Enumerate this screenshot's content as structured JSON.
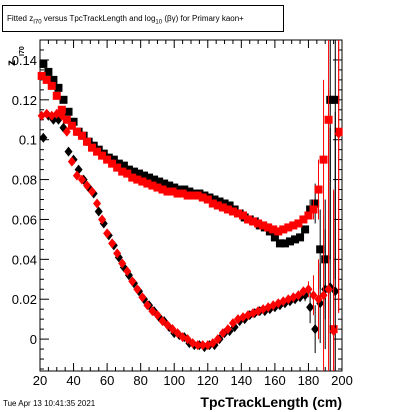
{
  "title": {
    "prefix": "Fitted  z",
    "sub1": "I70",
    "mid": " versus TpcTrackLength and log",
    "sub2": "10",
    "suffix": " (βγ) for Primary kaon+"
  },
  "timestamp": "Tue Apr 13 10:41:35 2021",
  "chart_data": {
    "type": "scatter",
    "xlabel": "TpcTrackLength (cm)",
    "ylabel_main": "z",
    "ylabel_sub": "I70",
    "xlim": [
      20,
      200
    ],
    "ylim": [
      -0.016,
      0.15
    ],
    "xticks": [
      20,
      40,
      60,
      80,
      100,
      120,
      140,
      160,
      180,
      200
    ],
    "yticks": [
      0,
      0.02,
      0.04,
      0.06,
      0.08,
      0.1,
      0.12,
      0.14
    ],
    "ytick_labels": [
      "0",
      "0.02",
      "0.04",
      "0.06",
      "0.08",
      "0.1",
      "0.12",
      "0.14"
    ],
    "colors": {
      "black": "#000000",
      "red": "#ff0000"
    },
    "series": [
      {
        "marker": "square",
        "color": "black",
        "x": [
          22,
          25,
          28,
          31,
          34,
          37,
          40,
          43,
          46,
          49,
          52,
          55,
          58,
          61,
          64,
          67,
          70,
          73,
          76,
          79,
          82,
          85,
          88,
          91,
          94,
          97,
          100,
          103,
          106,
          109,
          112,
          115,
          118,
          121,
          124,
          127,
          130,
          133,
          136,
          139,
          142,
          145,
          148,
          151,
          154,
          157,
          160,
          163,
          166,
          169,
          172,
          175,
          178,
          181,
          184,
          187,
          190,
          193,
          196
        ],
        "y": [
          0.138,
          0.134,
          0.13,
          0.126,
          0.12,
          0.114,
          0.109,
          0.104,
          0.102,
          0.099,
          0.097,
          0.095,
          0.093,
          0.091,
          0.09,
          0.088,
          0.087,
          0.085,
          0.084,
          0.083,
          0.082,
          0.081,
          0.08,
          0.079,
          0.078,
          0.077,
          0.076,
          0.075,
          0.075,
          0.074,
          0.073,
          0.073,
          0.072,
          0.071,
          0.07,
          0.069,
          0.068,
          0.067,
          0.065,
          0.063,
          0.061,
          0.06,
          0.059,
          0.057,
          0.056,
          0.054,
          0.051,
          0.048,
          0.048,
          0.049,
          0.05,
          0.051,
          0.055,
          0.065,
          0.068,
          0.045,
          0.04,
          0.12,
          0.12
        ],
        "err": [
          0,
          0,
          0,
          0,
          0,
          0,
          0,
          0,
          0,
          0,
          0,
          0,
          0,
          0,
          0,
          0,
          0,
          0,
          0,
          0,
          0,
          0,
          0,
          0,
          0,
          0,
          0,
          0,
          0,
          0,
          0,
          0,
          0,
          0,
          0,
          0,
          0,
          0,
          0,
          0,
          0,
          0,
          0,
          0,
          0,
          0,
          0,
          0,
          0,
          0,
          0,
          0,
          0,
          0.005,
          0.01,
          0.02,
          0.03,
          0.08,
          0.09
        ]
      },
      {
        "marker": "square",
        "color": "red",
        "x": [
          21,
          24,
          27,
          30,
          33,
          36,
          39,
          42,
          45,
          48,
          51,
          54,
          57,
          60,
          63,
          66,
          69,
          72,
          75,
          78,
          81,
          84,
          87,
          90,
          93,
          96,
          99,
          102,
          105,
          108,
          111,
          114,
          117,
          120,
          123,
          126,
          129,
          132,
          135,
          138,
          141,
          144,
          147,
          150,
          153,
          156,
          159,
          162,
          165,
          168,
          171,
          174,
          177,
          180,
          183,
          186,
          189,
          192,
          195,
          198
        ],
        "y": [
          0.132,
          0.13,
          0.127,
          0.122,
          0.115,
          0.11,
          0.107,
          0.104,
          0.102,
          0.099,
          0.096,
          0.094,
          0.092,
          0.09,
          0.088,
          0.086,
          0.084,
          0.083,
          0.081,
          0.08,
          0.079,
          0.078,
          0.077,
          0.076,
          0.075,
          0.074,
          0.074,
          0.073,
          0.073,
          0.072,
          0.072,
          0.072,
          0.071,
          0.07,
          0.068,
          0.067,
          0.066,
          0.065,
          0.064,
          0.063,
          0.062,
          0.06,
          0.059,
          0.058,
          0.057,
          0.056,
          0.055,
          0.054,
          0.055,
          0.056,
          0.057,
          0.058,
          0.06,
          0.062,
          0.065,
          0.075,
          0.09,
          0.11,
          0.005,
          0.104
        ],
        "err": [
          0,
          0,
          0,
          0,
          0,
          0,
          0,
          0,
          0,
          0,
          0,
          0,
          0,
          0,
          0,
          0,
          0,
          0,
          0,
          0,
          0,
          0,
          0,
          0,
          0,
          0,
          0,
          0,
          0,
          0,
          0,
          0,
          0,
          0,
          0,
          0,
          0,
          0,
          0,
          0,
          0,
          0,
          0,
          0,
          0,
          0,
          0,
          0,
          0,
          0,
          0,
          0,
          0,
          0,
          0.005,
          0.015,
          0.04,
          0.1,
          0.07,
          0.09
        ]
      },
      {
        "marker": "diamond",
        "color": "black",
        "x": [
          22,
          25,
          28,
          31,
          34,
          37,
          40,
          43,
          46,
          49,
          52,
          55,
          58,
          61,
          64,
          67,
          70,
          73,
          76,
          79,
          82,
          85,
          88,
          91,
          94,
          97,
          100,
          103,
          106,
          109,
          112,
          115,
          118,
          121,
          124,
          127,
          130,
          133,
          136,
          139,
          142,
          145,
          148,
          151,
          154,
          157,
          160,
          163,
          166,
          169,
          172,
          175,
          178,
          181,
          184,
          187,
          190,
          193,
          196
        ],
        "y": [
          0.101,
          0.112,
          0.11,
          0.11,
          0.106,
          0.094,
          0.09,
          0.085,
          0.08,
          0.076,
          0.073,
          0.064,
          0.058,
          0.052,
          0.047,
          0.041,
          0.036,
          0.032,
          0.028,
          0.024,
          0.02,
          0.017,
          0.014,
          0.011,
          0.009,
          0.006,
          0.003,
          0.002,
          0.001,
          -0.002,
          -0.003,
          -0.003,
          -0.004,
          -0.003,
          -0.003,
          0.0,
          0.003,
          0.004,
          0.006,
          0.009,
          0.01,
          0.012,
          0.013,
          0.014,
          0.014,
          0.015,
          0.016,
          0.017,
          0.018,
          0.019,
          0.02,
          0.021,
          0.022,
          0.016,
          0.005,
          0.018,
          0.025,
          0.026,
          0.024
        ],
        "err": [
          0,
          0,
          0,
          0,
          0,
          0,
          0,
          0,
          0,
          0,
          0,
          0,
          0,
          0,
          0,
          0,
          0,
          0,
          0,
          0,
          0,
          0,
          0,
          0,
          0,
          0,
          0,
          0,
          0,
          0,
          0,
          0,
          0,
          0,
          0,
          0,
          0,
          0,
          0,
          0,
          0,
          0,
          0,
          0,
          0,
          0,
          0,
          0,
          0,
          0,
          0,
          0,
          0.003,
          0.008,
          0.012,
          0.02,
          0.03,
          0.08,
          0.09
        ]
      },
      {
        "marker": "diamond",
        "color": "red",
        "x": [
          21,
          24,
          27,
          30,
          33,
          36,
          39,
          42,
          45,
          48,
          51,
          54,
          57,
          60,
          63,
          66,
          69,
          72,
          75,
          78,
          81,
          84,
          87,
          90,
          93,
          96,
          99,
          102,
          105,
          108,
          111,
          114,
          117,
          120,
          123,
          126,
          129,
          132,
          135,
          138,
          141,
          144,
          147,
          150,
          153,
          156,
          159,
          162,
          165,
          168,
          171,
          174,
          177,
          180,
          183,
          186,
          189,
          192,
          195,
          198
        ],
        "y": [
          0.112,
          0.113,
          0.112,
          0.113,
          0.112,
          0.104,
          0.089,
          0.082,
          0.08,
          0.077,
          0.074,
          0.068,
          0.06,
          0.053,
          0.048,
          0.043,
          0.038,
          0.034,
          0.029,
          0.025,
          0.021,
          0.017,
          0.014,
          0.012,
          0.009,
          0.007,
          0.005,
          0.003,
          0.001,
          0.0,
          -0.002,
          -0.003,
          -0.003,
          -0.003,
          -0.002,
          0.0,
          0.003,
          0.005,
          0.008,
          0.01,
          0.011,
          0.012,
          0.013,
          0.014,
          0.015,
          0.016,
          0.017,
          0.018,
          0.019,
          0.02,
          0.021,
          0.022,
          0.024,
          0.025,
          0.022,
          0.02,
          0.022,
          0.025,
          0.004,
          0.103
        ],
        "err": [
          0,
          0,
          0,
          0,
          0,
          0,
          0,
          0,
          0,
          0,
          0,
          0,
          0,
          0,
          0,
          0,
          0,
          0,
          0,
          0,
          0,
          0,
          0,
          0,
          0,
          0,
          0,
          0,
          0,
          0,
          0,
          0,
          0,
          0,
          0,
          0,
          0,
          0,
          0,
          0,
          0,
          0,
          0,
          0,
          0,
          0,
          0,
          0,
          0,
          0,
          0,
          0,
          0,
          0.004,
          0.01,
          0.02,
          0.04,
          0.1,
          0.07,
          0.09
        ]
      }
    ]
  }
}
